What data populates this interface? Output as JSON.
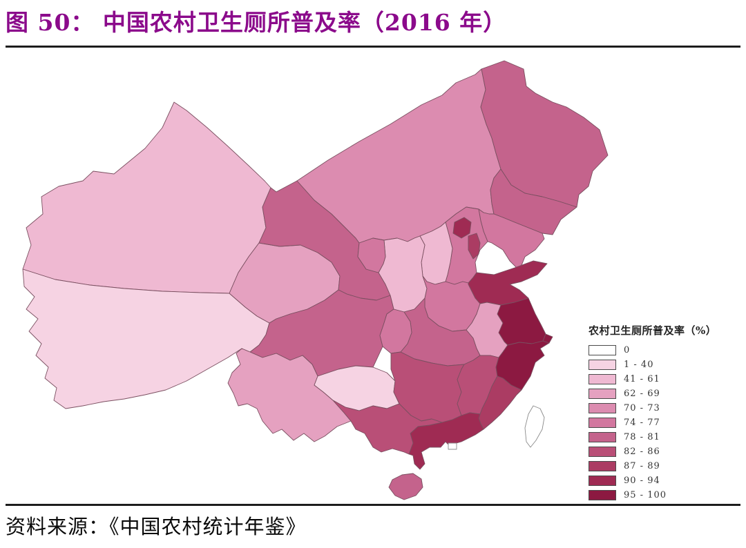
{
  "page": {
    "title": "图 50：  中国农村卫生厕所普及率（2016 年）",
    "source": "资料来源：《中国农村统计年鉴》"
  },
  "legend": {
    "title": "农村卫生厕所普及率（%）",
    "classes": [
      {
        "label": "0",
        "color": "#ffffff"
      },
      {
        "label": "1 - 40",
        "color": "#f6d3e3"
      },
      {
        "label": "41 - 61",
        "color": "#efb9d2"
      },
      {
        "label": "62 - 69",
        "color": "#e5a1c0"
      },
      {
        "label": "70 - 73",
        "color": "#dc8cb0"
      },
      {
        "label": "74 - 77",
        "color": "#d2779f"
      },
      {
        "label": "78 - 81",
        "color": "#c4638c"
      },
      {
        "label": "82 - 86",
        "color": "#b94f77"
      },
      {
        "label": "87 - 89",
        "color": "#ab3c63"
      },
      {
        "label": "90 - 94",
        "color": "#9f2b53"
      },
      {
        "label": "95 - 100",
        "color": "#8c1941"
      }
    ]
  },
  "map": {
    "type": "choropleth",
    "border_color": "#7a4f60",
    "island_outline_color": "#8a8a8a",
    "regions": [
      {
        "id": "xinjiang",
        "range": "41 - 61",
        "color": "#efb9d2"
      },
      {
        "id": "xizang",
        "range": "1 - 40",
        "color": "#f6d3e3"
      },
      {
        "id": "qinghai",
        "range": "62 - 69",
        "color": "#e5a1c0"
      },
      {
        "id": "gansu",
        "range": "78 - 81",
        "color": "#c4638c"
      },
      {
        "id": "neimenggu",
        "range": "70 - 73",
        "color": "#dc8cb0"
      },
      {
        "id": "ningxia",
        "range": "74 - 77",
        "color": "#d2779f"
      },
      {
        "id": "shaanxi",
        "range": "41 - 61",
        "color": "#efb9d2"
      },
      {
        "id": "shanxi",
        "range": "41 - 61",
        "color": "#efb9d2"
      },
      {
        "id": "hebei",
        "range": "74 - 77",
        "color": "#d2779f"
      },
      {
        "id": "beijing",
        "range": "90 - 94",
        "color": "#9f2b53"
      },
      {
        "id": "tianjin",
        "range": "87 - 89",
        "color": "#ab3c63"
      },
      {
        "id": "liaoning",
        "range": "74 - 77",
        "color": "#d2779f"
      },
      {
        "id": "jilin",
        "range": "78 - 81",
        "color": "#c4638c"
      },
      {
        "id": "heilongjiang",
        "range": "78 - 81",
        "color": "#c4638c"
      },
      {
        "id": "shandong",
        "range": "90 - 94",
        "color": "#9f2b53"
      },
      {
        "id": "henan",
        "range": "74 - 77",
        "color": "#d2779f"
      },
      {
        "id": "jiangsu",
        "range": "95 - 100",
        "color": "#8c1941"
      },
      {
        "id": "anhui",
        "range": "62 - 69",
        "color": "#e5a1c0"
      },
      {
        "id": "shanghai",
        "range": "95 - 100",
        "color": "#8c1941"
      },
      {
        "id": "zhejiang",
        "range": "95 - 100",
        "color": "#8c1941"
      },
      {
        "id": "hubei",
        "range": "78 - 81",
        "color": "#c4638c"
      },
      {
        "id": "chongqing",
        "range": "74 - 77",
        "color": "#d2779f"
      },
      {
        "id": "sichuan",
        "range": "78 - 81",
        "color": "#c4638c"
      },
      {
        "id": "guizhou",
        "range": "1 - 40",
        "color": "#f6d3e3"
      },
      {
        "id": "yunnan",
        "range": "62 - 69",
        "color": "#e5a1c0"
      },
      {
        "id": "hunan",
        "range": "82 - 86",
        "color": "#b94f77"
      },
      {
        "id": "jiangxi",
        "range": "82 - 86",
        "color": "#b94f77"
      },
      {
        "id": "fujian",
        "range": "87 - 89",
        "color": "#ab3c63"
      },
      {
        "id": "guangdong",
        "range": "90 - 94",
        "color": "#9f2b53"
      },
      {
        "id": "guangxi",
        "range": "82 - 86",
        "color": "#b94f77"
      },
      {
        "id": "hainan",
        "range": "78 - 81",
        "color": "#c4638c"
      },
      {
        "id": "taiwan",
        "range": "0",
        "color": "#ffffff"
      },
      {
        "id": "hongkong",
        "range": "0",
        "color": "#ffffff"
      }
    ]
  },
  "chart_data": {
    "type": "choropleth_map",
    "title": "中国农村卫生厕所普及率（2016 年）",
    "unit": "%",
    "legend_title": "农村卫生厕所普及率（%）",
    "class_breaks": [
      "0",
      "1 - 40",
      "41 - 61",
      "62 - 69",
      "70 - 73",
      "74 - 77",
      "78 - 81",
      "82 - 86",
      "87 - 89",
      "90 - 94",
      "95 - 100"
    ],
    "region_classes": {
      "xinjiang": "41 - 61",
      "xizang": "1 - 40",
      "qinghai": "62 - 69",
      "gansu": "78 - 81",
      "neimenggu": "70 - 73",
      "ningxia": "74 - 77",
      "shaanxi": "41 - 61",
      "shanxi": "41 - 61",
      "hebei": "74 - 77",
      "beijing": "90 - 94",
      "tianjin": "87 - 89",
      "liaoning": "74 - 77",
      "jilin": "78 - 81",
      "heilongjiang": "78 - 81",
      "shandong": "90 - 94",
      "henan": "74 - 77",
      "jiangsu": "95 - 100",
      "anhui": "62 - 69",
      "shanghai": "95 - 100",
      "zhejiang": "95 - 100",
      "hubei": "78 - 81",
      "chongqing": "74 - 77",
      "sichuan": "78 - 81",
      "guizhou": "1 - 40",
      "yunnan": "62 - 69",
      "hunan": "82 - 86",
      "jiangxi": "82 - 86",
      "fujian": "87 - 89",
      "guangdong": "90 - 94",
      "guangxi": "82 - 86",
      "hainan": "78 - 81",
      "taiwan": "0",
      "hongkong": "0"
    }
  }
}
